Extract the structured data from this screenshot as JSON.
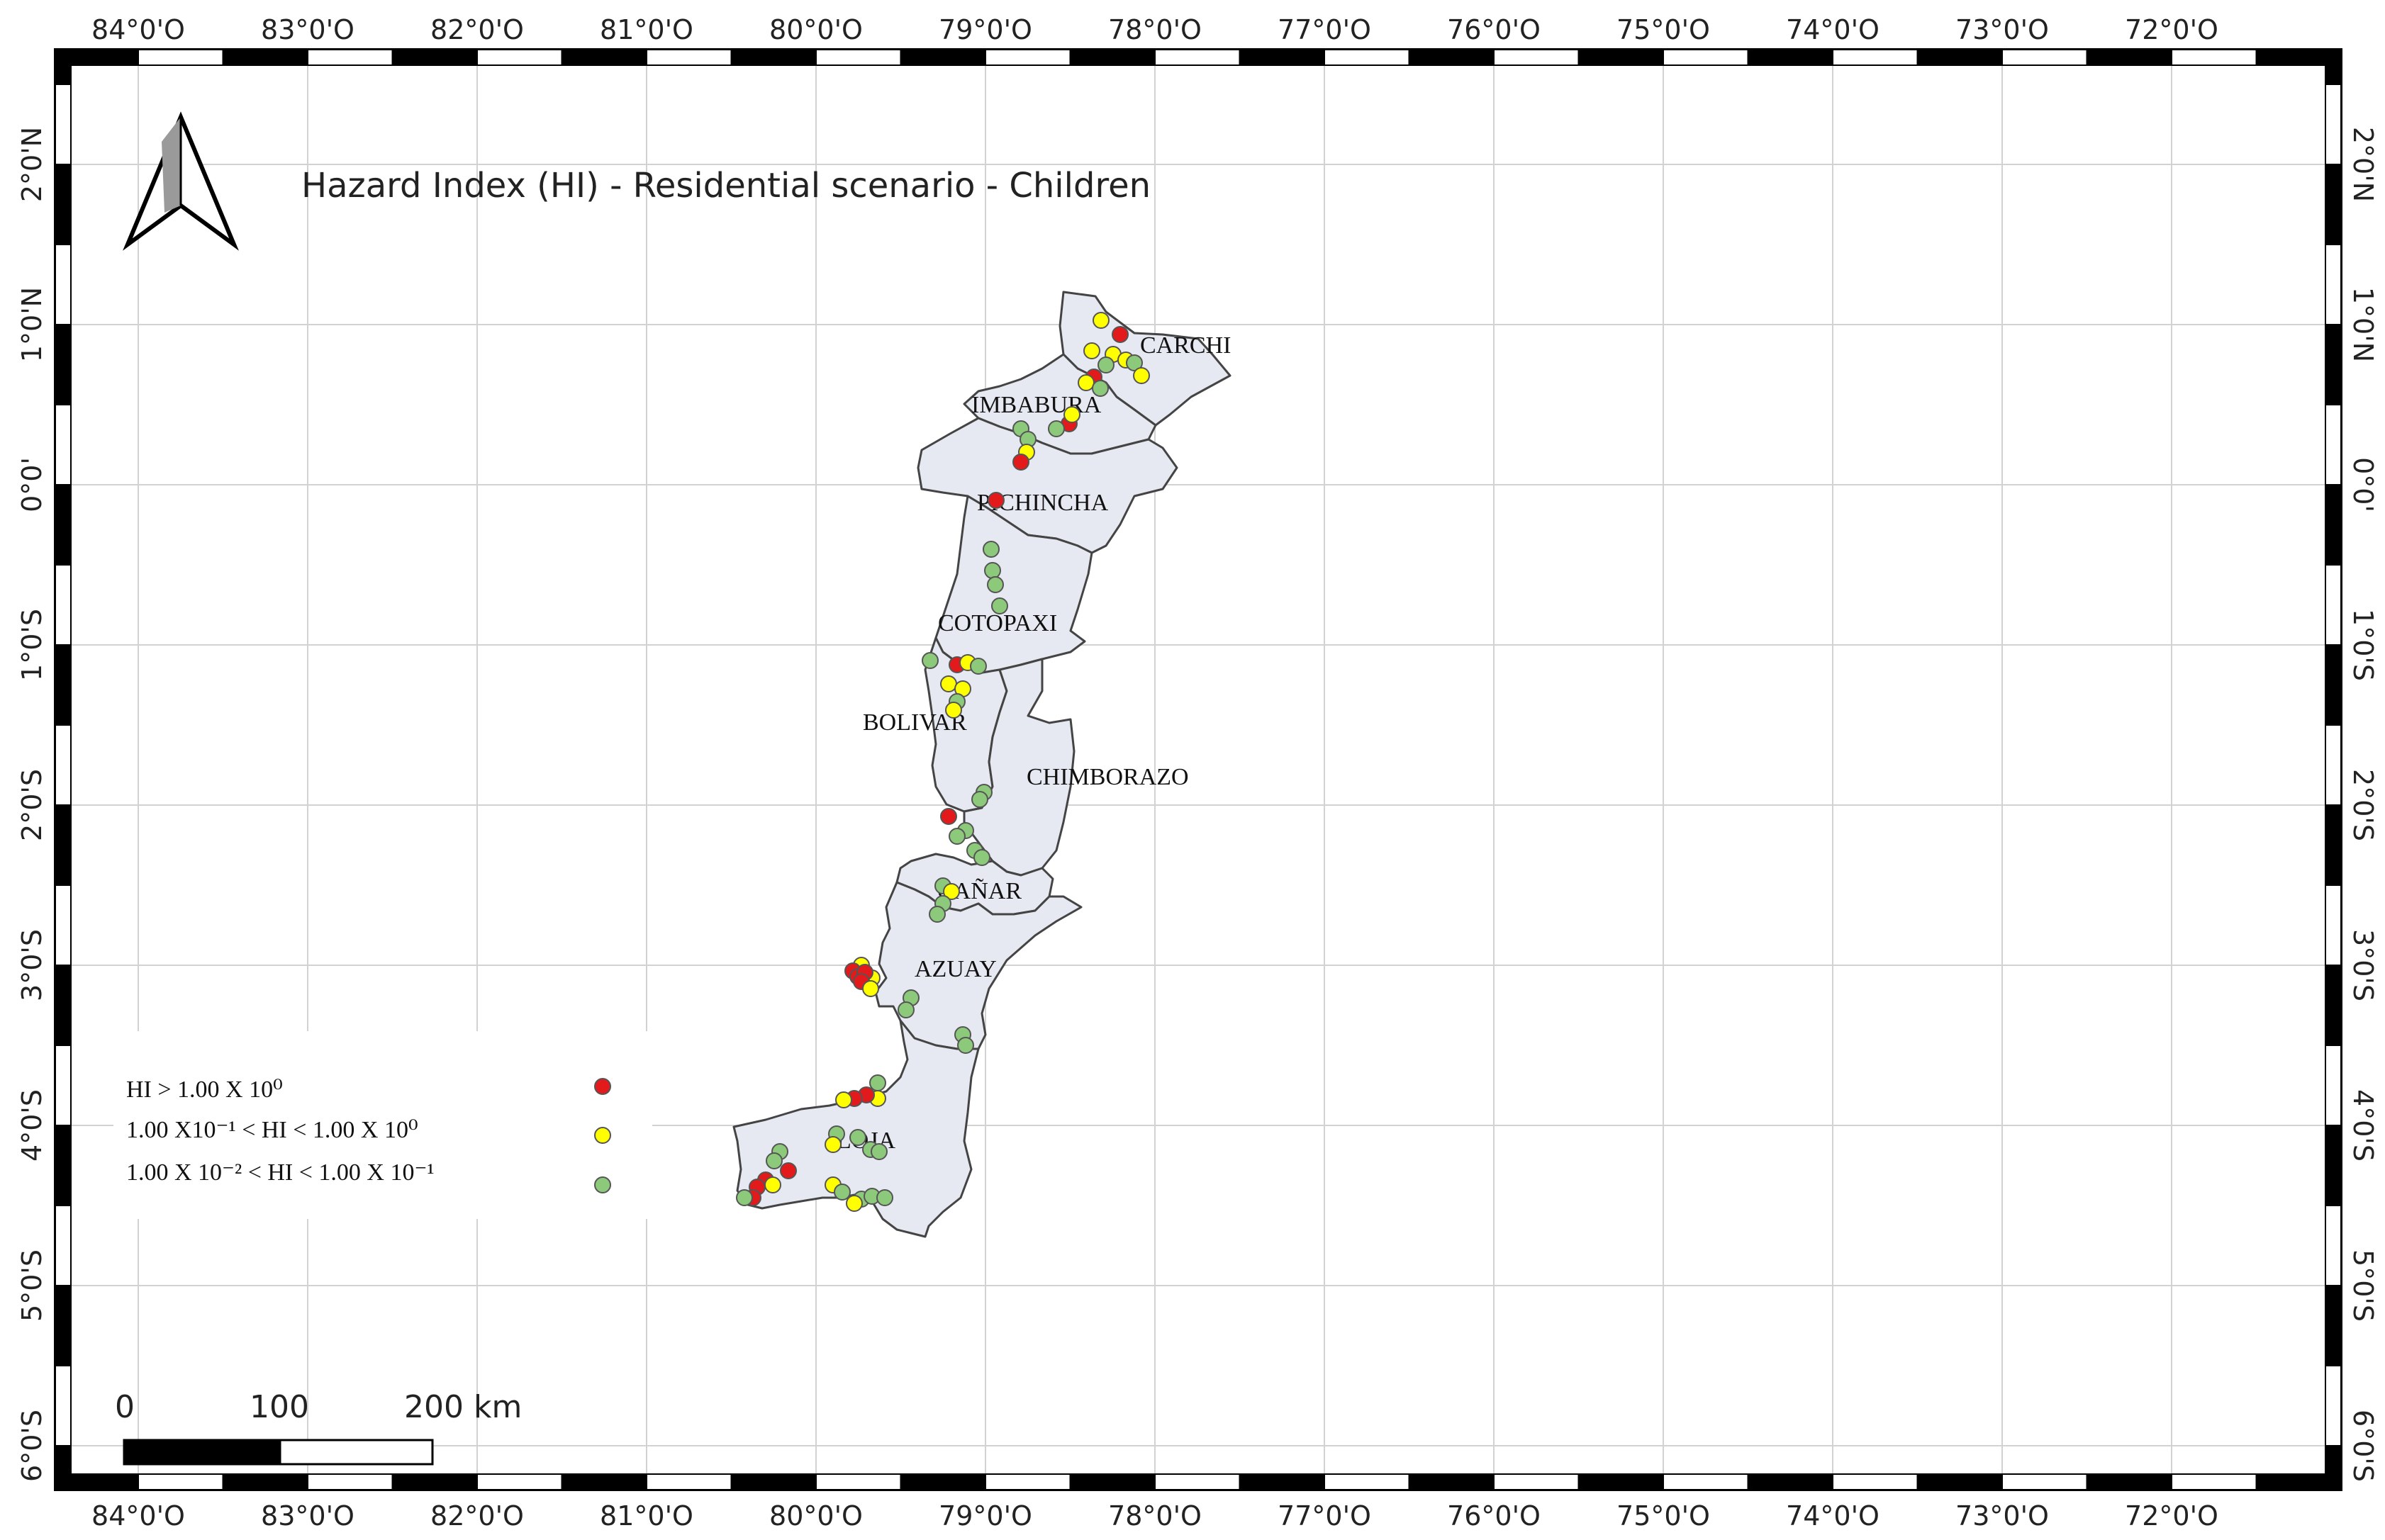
{
  "map": {
    "title": "Hazard Index (HI) - Residential scenario - Children",
    "colors": {
      "high": "#e31a1c",
      "medium": "#ffff00",
      "low": "#8cc97a",
      "province_fill": "#e6e9f1",
      "province_stroke": "#444444",
      "grid": "#cccccc"
    },
    "top_axis_labels": [
      "84°0'O",
      "83°0'O",
      "82°0'O",
      "81°0'O",
      "80°0'O",
      "79°0'O",
      "78°0'O",
      "77°0'O",
      "76°0'O",
      "75°0'O",
      "74°0'O",
      "73°0'O",
      "72°0'O"
    ],
    "bottom_axis_labels": [
      "84°0'O",
      "83°0'O",
      "82°0'O",
      "81°0'O",
      "80°0'O",
      "79°0'O",
      "78°0'O",
      "77°0'O",
      "76°0'O",
      "75°0'O",
      "74°0'O",
      "73°0'O",
      "72°0'O"
    ],
    "left_axis_labels": [
      "2°0'N",
      "1°0'N",
      "0°0'",
      "1°0'S",
      "2°0'S",
      "3°0'S",
      "4°0'S",
      "5°0'S",
      "6°0'S"
    ],
    "right_axis_labels": [
      "2°0'N",
      "1°0'N",
      "0°0'",
      "1°0'S",
      "2°0'S",
      "3°0'S",
      "4°0'S",
      "5°0'S",
      "6°0'S"
    ],
    "provinces": [
      "CARCHI",
      "IMBABURA",
      "PICHINCHA",
      "COTOPAXI",
      "BOLIVAR",
      "CHIMBORAZO",
      "CAÑAR",
      "AZUAY",
      "LOJA"
    ],
    "legend": {
      "high": "HI > 1.00 X 10⁰",
      "medium": "1.00 X10⁻¹ < HI < 1.00 X 10⁰",
      "low": "1.00 X 10⁻² < HI < 1.00 X 10⁻¹"
    },
    "scale_bar": {
      "labels": [
        "0",
        "100",
        "200 km"
      ]
    },
    "north_arrow_icon": "north-arrow-icon"
  }
}
